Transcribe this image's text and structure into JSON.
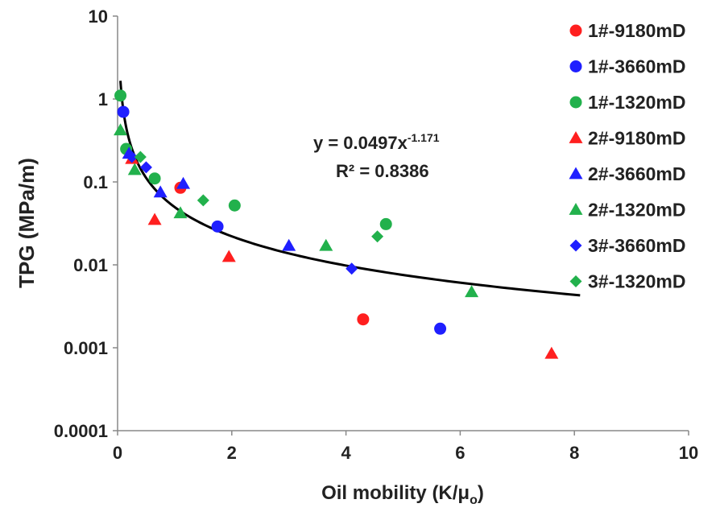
{
  "chart_data": {
    "type": "scatter",
    "title": "",
    "xlabel": "Oil mobility (K/μ",
    "xlabel_sub": "o",
    "xlabel_close": ")",
    "ylabel": "TPG (MPa/m)",
    "xlim": [
      0,
      10
    ],
    "ylim": [
      0.0001,
      10
    ],
    "yscale": "log",
    "x_ticks": [
      "0",
      "2",
      "4",
      "6",
      "8",
      "10"
    ],
    "y_ticks": [
      "0.0001",
      "0.001",
      "0.01",
      "0.1",
      "1",
      "10"
    ],
    "legend_position": "right",
    "series": [
      {
        "name": "1#-9180mD",
        "color": "#ff1f1f",
        "marker": "circle",
        "points": [
          [
            1.1,
            0.085
          ],
          [
            4.3,
            0.0022
          ]
        ]
      },
      {
        "name": "1#-3660mD",
        "color": "#1f1fff",
        "marker": "circle",
        "points": [
          [
            0.1,
            0.7
          ],
          [
            1.75,
            0.029
          ],
          [
            5.65,
            0.0017
          ]
        ]
      },
      {
        "name": "1#-1320mD",
        "color": "#22b14c",
        "marker": "circle",
        "points": [
          [
            0.05,
            1.1
          ],
          [
            0.15,
            0.25
          ],
          [
            0.65,
            0.11
          ],
          [
            2.05,
            0.052
          ],
          [
            4.7,
            0.031
          ]
        ]
      },
      {
        "name": "2#-9180mD",
        "color": "#ff1f1f",
        "marker": "triangle",
        "points": [
          [
            0.25,
            0.19
          ],
          [
            0.65,
            0.035
          ],
          [
            1.95,
            0.0125
          ],
          [
            7.6,
            0.00085
          ]
        ]
      },
      {
        "name": "2#-3660mD",
        "color": "#1f1fff",
        "marker": "triangle",
        "points": [
          [
            0.2,
            0.22
          ],
          [
            0.75,
            0.075
          ],
          [
            1.15,
            0.095
          ],
          [
            3.0,
            0.017
          ]
        ]
      },
      {
        "name": "2#-1320mD",
        "color": "#22b14c",
        "marker": "triangle",
        "points": [
          [
            0.05,
            0.42
          ],
          [
            0.3,
            0.14
          ],
          [
            1.1,
            0.042
          ],
          [
            3.65,
            0.017
          ],
          [
            6.2,
            0.0047
          ]
        ]
      },
      {
        "name": "3#-3660mD",
        "color": "#1f1fff",
        "marker": "diamond",
        "points": [
          [
            0.25,
            0.2
          ],
          [
            0.5,
            0.15
          ],
          [
            4.1,
            0.009
          ]
        ]
      },
      {
        "name": "3#-1320mD",
        "color": "#22b14c",
        "marker": "diamond",
        "points": [
          [
            0.4,
            0.2
          ],
          [
            1.5,
            0.06
          ],
          [
            4.55,
            0.022
          ]
        ]
      }
    ],
    "trendline": {
      "type": "power",
      "coefficient": 0.0497,
      "exponent": -1.171,
      "x_range": [
        0.05,
        8.1
      ],
      "equation_prefix": "y = 0.0497x",
      "equation_exponent": "-1.171",
      "r2_label": "R² = 0.8386"
    }
  }
}
